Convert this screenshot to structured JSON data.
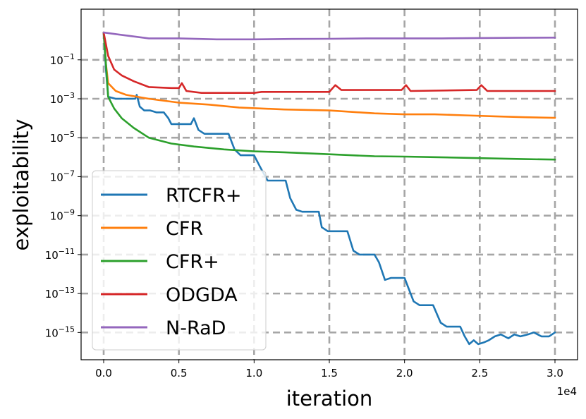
{
  "chart_data": {
    "type": "line",
    "title": "",
    "xlabel": "iteration",
    "ylabel": "exploitability",
    "x_offset_text": "1e4",
    "xlim": [
      -1500,
      31500
    ],
    "ylim_log10": [
      -16.4,
      1.6
    ],
    "y_scale": "log",
    "grid": true,
    "legend_position": "lower-left",
    "x_ticks": [
      {
        "value": 0,
        "label": "0.0"
      },
      {
        "value": 5000,
        "label": "0.5"
      },
      {
        "value": 10000,
        "label": "1.0"
      },
      {
        "value": 15000,
        "label": "1.5"
      },
      {
        "value": 20000,
        "label": "2.0"
      },
      {
        "value": 25000,
        "label": "2.5"
      },
      {
        "value": 30000,
        "label": "3.0"
      }
    ],
    "y_ticks": [
      {
        "exp": -1,
        "base": "10",
        "sup": "−1"
      },
      {
        "exp": -3,
        "base": "10",
        "sup": "−3"
      },
      {
        "exp": -5,
        "base": "10",
        "sup": "−5"
      },
      {
        "exp": -7,
        "base": "10",
        "sup": "−7"
      },
      {
        "exp": -9,
        "base": "10",
        "sup": "−9"
      },
      {
        "exp": -11,
        "base": "10",
        "sup": "−11"
      },
      {
        "exp": -13,
        "base": "10",
        "sup": "−13"
      },
      {
        "exp": -15,
        "base": "10",
        "sup": "−15"
      }
    ],
    "series": [
      {
        "name": "RTCFR+",
        "color": "#1f77b4",
        "points_log10": [
          [
            0,
            0.4
          ],
          [
            150,
            -1.5
          ],
          [
            300,
            -2.9
          ],
          [
            800,
            -3.0
          ],
          [
            1600,
            -3.0
          ],
          [
            2100,
            -3.0
          ],
          [
            2200,
            -2.8
          ],
          [
            2400,
            -3.4
          ],
          [
            2700,
            -3.6
          ],
          [
            3100,
            -3.6
          ],
          [
            3500,
            -3.7
          ],
          [
            4000,
            -3.7
          ],
          [
            4300,
            -4.0
          ],
          [
            4500,
            -4.3
          ],
          [
            5000,
            -4.3
          ],
          [
            5500,
            -4.3
          ],
          [
            5800,
            -4.3
          ],
          [
            6000,
            -4.0
          ],
          [
            6300,
            -4.6
          ],
          [
            6700,
            -4.8
          ],
          [
            7300,
            -4.8
          ],
          [
            8300,
            -4.8
          ],
          [
            8700,
            -5.6
          ],
          [
            9100,
            -5.9
          ],
          [
            10000,
            -5.9
          ],
          [
            10400,
            -6.5
          ],
          [
            10900,
            -7.2
          ],
          [
            11300,
            -7.2
          ],
          [
            12100,
            -7.2
          ],
          [
            12400,
            -8.1
          ],
          [
            12800,
            -8.7
          ],
          [
            13200,
            -8.8
          ],
          [
            14300,
            -8.8
          ],
          [
            14500,
            -9.6
          ],
          [
            14900,
            -9.8
          ],
          [
            15200,
            -9.8
          ],
          [
            16200,
            -9.8
          ],
          [
            16600,
            -10.8
          ],
          [
            17000,
            -11.0
          ],
          [
            18000,
            -11.0
          ],
          [
            18300,
            -11.4
          ],
          [
            18700,
            -12.3
          ],
          [
            19100,
            -12.2
          ],
          [
            20000,
            -12.2
          ],
          [
            20300,
            -12.8
          ],
          [
            20600,
            -13.4
          ],
          [
            21000,
            -13.6
          ],
          [
            21900,
            -13.6
          ],
          [
            22400,
            -14.5
          ],
          [
            22800,
            -14.7
          ],
          [
            23700,
            -14.7
          ],
          [
            24000,
            -15.2
          ],
          [
            24300,
            -15.6
          ],
          [
            24600,
            -15.4
          ],
          [
            24900,
            -15.6
          ],
          [
            25300,
            -15.5
          ],
          [
            25600,
            -15.4
          ],
          [
            26000,
            -15.2
          ],
          [
            26400,
            -15.1
          ],
          [
            26900,
            -15.3
          ],
          [
            27300,
            -15.1
          ],
          [
            27700,
            -15.2
          ],
          [
            28200,
            -15.1
          ],
          [
            28600,
            -15.0
          ],
          [
            29100,
            -15.2
          ],
          [
            29600,
            -15.2
          ],
          [
            30000,
            -15.0
          ]
        ]
      },
      {
        "name": "CFR",
        "color": "#ff7f0e",
        "points_log10": [
          [
            0,
            0.4
          ],
          [
            150,
            -1.2
          ],
          [
            300,
            -2.2
          ],
          [
            800,
            -2.6
          ],
          [
            1500,
            -2.8
          ],
          [
            3000,
            -3.0
          ],
          [
            5000,
            -3.2
          ],
          [
            7000,
            -3.3
          ],
          [
            9000,
            -3.45
          ],
          [
            12000,
            -3.55
          ],
          [
            15000,
            -3.6
          ],
          [
            18000,
            -3.75
          ],
          [
            20000,
            -3.8
          ],
          [
            22000,
            -3.8
          ],
          [
            24000,
            -3.85
          ],
          [
            26000,
            -3.9
          ],
          [
            28000,
            -3.95
          ],
          [
            30000,
            -3.98
          ]
        ]
      },
      {
        "name": "CFR+",
        "color": "#2ca02c",
        "points_log10": [
          [
            0,
            0.4
          ],
          [
            150,
            -1.2
          ],
          [
            300,
            -2.9
          ],
          [
            700,
            -3.5
          ],
          [
            1200,
            -4.0
          ],
          [
            2000,
            -4.5
          ],
          [
            3000,
            -5.0
          ],
          [
            4500,
            -5.3
          ],
          [
            6000,
            -5.45
          ],
          [
            8000,
            -5.6
          ],
          [
            10000,
            -5.7
          ],
          [
            12000,
            -5.75
          ],
          [
            15000,
            -5.85
          ],
          [
            18000,
            -5.95
          ],
          [
            20000,
            -5.97
          ],
          [
            22000,
            -6.0
          ],
          [
            25000,
            -6.05
          ],
          [
            28000,
            -6.1
          ],
          [
            30000,
            -6.12
          ]
        ]
      },
      {
        "name": "ODGDA",
        "color": "#d62728",
        "points_log10": [
          [
            0,
            0.4
          ],
          [
            300,
            -0.8
          ],
          [
            700,
            -1.5
          ],
          [
            1200,
            -1.8
          ],
          [
            2000,
            -2.1
          ],
          [
            3000,
            -2.4
          ],
          [
            4500,
            -2.45
          ],
          [
            5000,
            -2.45
          ],
          [
            5200,
            -2.2
          ],
          [
            5500,
            -2.6
          ],
          [
            6500,
            -2.7
          ],
          [
            10000,
            -2.7
          ],
          [
            10500,
            -2.65
          ],
          [
            15000,
            -2.65
          ],
          [
            15400,
            -2.3
          ],
          [
            15800,
            -2.55
          ],
          [
            19800,
            -2.55
          ],
          [
            20100,
            -2.3
          ],
          [
            20400,
            -2.6
          ],
          [
            24800,
            -2.55
          ],
          [
            25100,
            -2.3
          ],
          [
            25500,
            -2.6
          ],
          [
            30000,
            -2.6
          ]
        ]
      },
      {
        "name": "N-RaD",
        "color": "#9467bd",
        "points_log10": [
          [
            0,
            0.4
          ],
          [
            1000,
            0.3
          ],
          [
            2000,
            0.2
          ],
          [
            3000,
            0.1
          ],
          [
            5000,
            0.1
          ],
          [
            7500,
            0.05
          ],
          [
            10000,
            0.05
          ],
          [
            12500,
            0.07
          ],
          [
            15000,
            0.08
          ],
          [
            17500,
            0.1
          ],
          [
            20000,
            0.1
          ],
          [
            22500,
            0.1
          ],
          [
            25000,
            0.12
          ],
          [
            27500,
            0.13
          ],
          [
            30000,
            0.14
          ]
        ]
      }
    ]
  }
}
